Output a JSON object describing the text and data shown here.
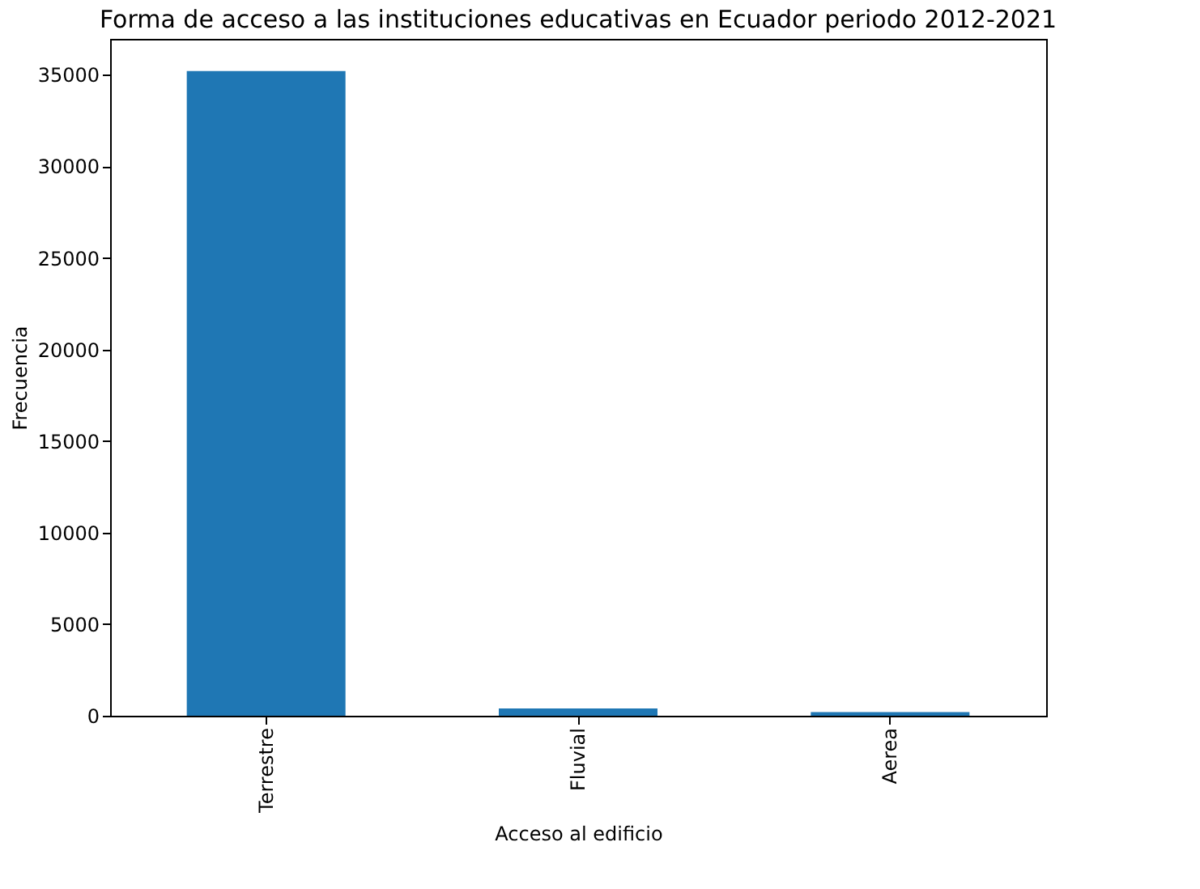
{
  "chart_data": {
    "type": "bar",
    "title": "Forma de acceso a las instituciones educativas en Ecuador periodo 2012-2021",
    "xlabel": "Acceso al edificio",
    "ylabel": "Frecuencia",
    "categories": [
      "Terrestre",
      "Fluvial",
      "Aerea"
    ],
    "values": [
      35200,
      400,
      200
    ],
    "color": "#1f77b4",
    "ylim": [
      0,
      36960
    ],
    "yticks": [
      0,
      5000,
      10000,
      15000,
      20000,
      25000,
      30000,
      35000
    ],
    "grid": false
  }
}
